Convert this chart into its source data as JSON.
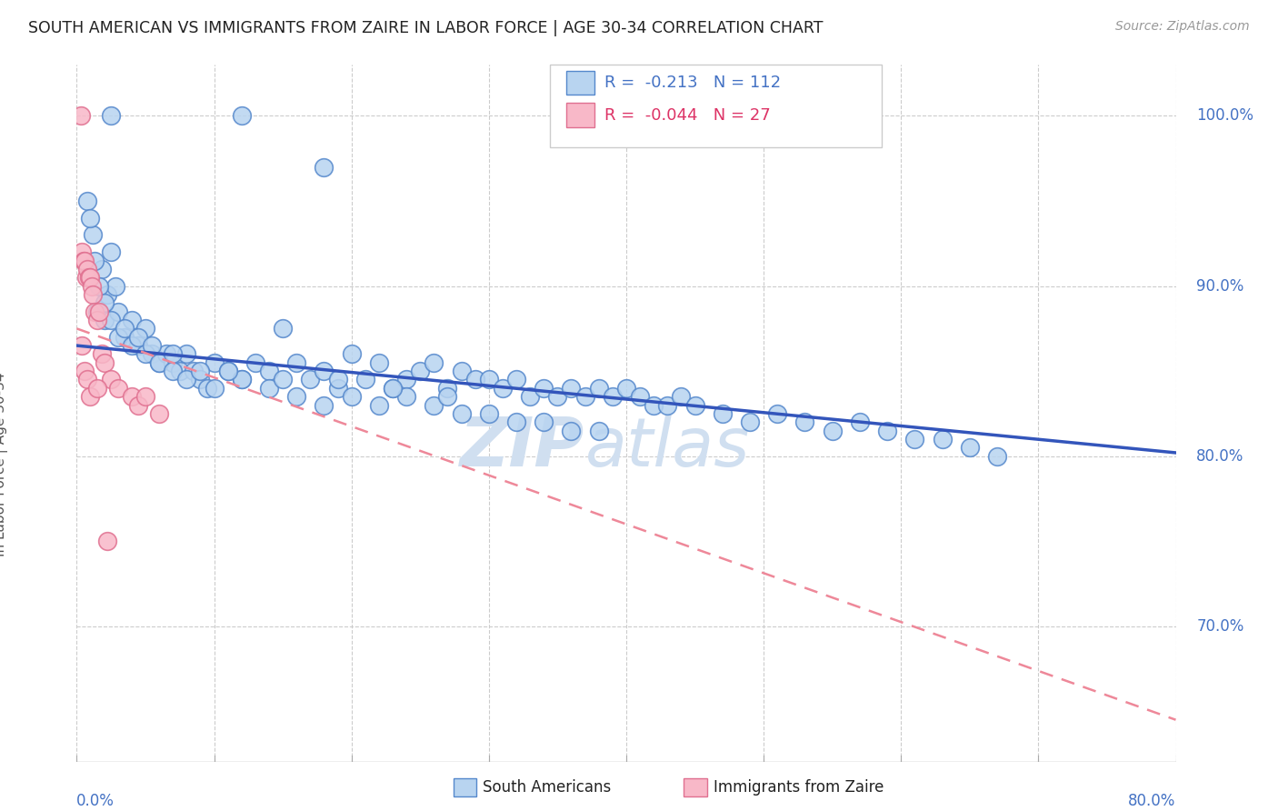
{
  "title": "SOUTH AMERICAN VS IMMIGRANTS FROM ZAIRE IN LABOR FORCE | AGE 30-34 CORRELATION CHART",
  "source": "Source: ZipAtlas.com",
  "ylabel_label": "In Labor Force | Age 30-34",
  "legend1_r": "-0.213",
  "legend1_n": "112",
  "legend2_r": "-0.044",
  "legend2_n": "27",
  "legend1_label": "South Americans",
  "legend2_label": "Immigrants from Zaire",
  "blue_color": "#b8d4f0",
  "blue_edge_color": "#5588cc",
  "pink_color": "#f8b8c8",
  "pink_edge_color": "#e07090",
  "blue_line_color": "#3355bb",
  "pink_line_color": "#ee8899",
  "text_color": "#4472c4",
  "title_color": "#222222",
  "watermark_zip": "ZIP",
  "watermark_atlas": "atlas",
  "watermark_color": "#d0dff0",
  "xmin": 0.0,
  "xmax": 80.0,
  "ymin": 62.0,
  "ymax": 103.0,
  "blue_line_x0": 0.0,
  "blue_line_y0": 86.5,
  "blue_line_x1": 80.0,
  "blue_line_y1": 80.2,
  "pink_line_x0": 0.0,
  "pink_line_y0": 87.5,
  "pink_line_x1": 80.0,
  "pink_line_y1": 64.5,
  "blue_x": [
    2.5,
    12.0,
    18.0,
    1.2,
    1.5,
    1.8,
    2.0,
    2.2,
    2.5,
    2.8,
    3.0,
    3.5,
    4.0,
    4.5,
    5.0,
    5.5,
    6.0,
    6.5,
    7.0,
    7.5,
    8.0,
    8.5,
    9.0,
    9.5,
    10.0,
    11.0,
    12.0,
    13.0,
    14.0,
    15.0,
    16.0,
    17.0,
    18.0,
    19.0,
    20.0,
    21.0,
    22.0,
    23.0,
    24.0,
    25.0,
    26.0,
    27.0,
    28.0,
    29.0,
    30.0,
    31.0,
    32.0,
    33.0,
    34.0,
    35.0,
    36.0,
    37.0,
    38.0,
    39.0,
    40.0,
    41.0,
    42.0,
    43.0,
    44.0,
    45.0,
    47.0,
    49.0,
    51.0,
    53.0,
    55.0,
    57.0,
    59.0,
    61.0,
    63.0,
    65.0,
    67.0,
    3.0,
    4.0,
    5.0,
    6.0,
    7.0,
    8.0,
    10.0,
    12.0,
    14.0,
    16.0,
    18.0,
    20.0,
    22.0,
    24.0,
    26.0,
    28.0,
    30.0,
    32.0,
    34.0,
    36.0,
    38.0,
    0.8,
    1.0,
    1.3,
    1.6,
    2.0,
    2.5,
    3.5,
    4.5,
    5.5,
    7.0,
    9.0,
    11.0,
    15.0,
    19.0,
    23.0,
    27.0
  ],
  "blue_y": [
    100.0,
    100.0,
    97.0,
    93.0,
    88.5,
    91.0,
    88.0,
    89.5,
    92.0,
    90.0,
    88.5,
    87.0,
    88.0,
    86.5,
    87.5,
    86.0,
    85.5,
    86.0,
    85.5,
    85.0,
    86.0,
    85.0,
    84.5,
    84.0,
    85.5,
    85.0,
    84.5,
    85.5,
    85.0,
    87.5,
    85.5,
    84.5,
    85.0,
    84.0,
    86.0,
    84.5,
    85.5,
    84.0,
    84.5,
    85.0,
    85.5,
    84.0,
    85.0,
    84.5,
    84.5,
    84.0,
    84.5,
    83.5,
    84.0,
    83.5,
    84.0,
    83.5,
    84.0,
    83.5,
    84.0,
    83.5,
    83.0,
    83.0,
    83.5,
    83.0,
    82.5,
    82.0,
    82.5,
    82.0,
    81.5,
    82.0,
    81.5,
    81.0,
    81.0,
    80.5,
    80.0,
    87.0,
    86.5,
    86.0,
    85.5,
    85.0,
    84.5,
    84.0,
    84.5,
    84.0,
    83.5,
    83.0,
    83.5,
    83.0,
    83.5,
    83.0,
    82.5,
    82.5,
    82.0,
    82.0,
    81.5,
    81.5,
    95.0,
    94.0,
    91.5,
    90.0,
    89.0,
    88.0,
    87.5,
    87.0,
    86.5,
    86.0,
    85.0,
    85.0,
    84.5,
    84.5,
    84.0,
    83.5
  ],
  "pink_x": [
    0.3,
    0.4,
    0.5,
    0.6,
    0.7,
    0.8,
    0.9,
    1.0,
    1.1,
    1.2,
    1.3,
    1.5,
    1.6,
    1.8,
    2.0,
    2.5,
    3.0,
    4.0,
    4.5,
    5.0,
    6.0,
    0.4,
    0.6,
    0.8,
    1.0,
    1.5,
    2.2
  ],
  "pink_y": [
    100.0,
    92.0,
    91.5,
    91.5,
    90.5,
    91.0,
    90.5,
    90.5,
    90.0,
    89.5,
    88.5,
    88.0,
    88.5,
    86.0,
    85.5,
    84.5,
    84.0,
    83.5,
    83.0,
    83.5,
    82.5,
    86.5,
    85.0,
    84.5,
    83.5,
    84.0,
    75.0
  ]
}
